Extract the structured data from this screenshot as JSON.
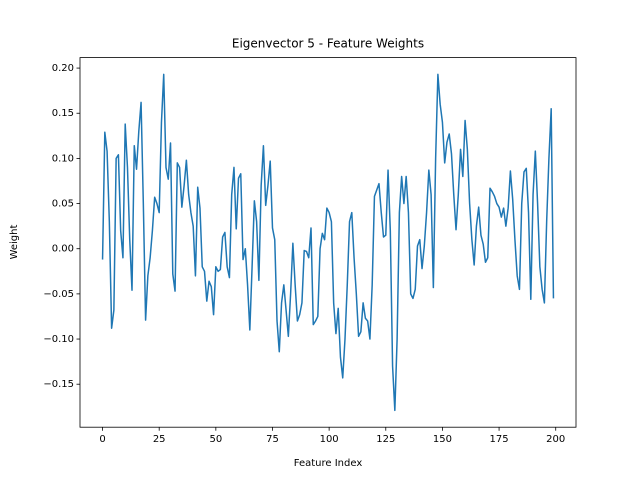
{
  "chart_data": {
    "type": "line",
    "title": "Eigenvector 5 - Feature Weights",
    "xlabel": "Feature Index",
    "ylabel": "Weight",
    "x": [
      0,
      1,
      2,
      3,
      4,
      5,
      6,
      7,
      8,
      9,
      10,
      11,
      12,
      13,
      14,
      15,
      16,
      17,
      18,
      19,
      20,
      21,
      22,
      23,
      24,
      25,
      26,
      27,
      28,
      29,
      30,
      31,
      32,
      33,
      34,
      35,
      36,
      37,
      38,
      39,
      40,
      41,
      42,
      43,
      44,
      45,
      46,
      47,
      48,
      49,
      50,
      51,
      52,
      53,
      54,
      55,
      56,
      57,
      58,
      59,
      60,
      61,
      62,
      63,
      64,
      65,
      66,
      67,
      68,
      69,
      70,
      71,
      72,
      73,
      74,
      75,
      76,
      77,
      78,
      79,
      80,
      81,
      82,
      83,
      84,
      85,
      86,
      87,
      88,
      89,
      90,
      91,
      92,
      93,
      94,
      95,
      96,
      97,
      98,
      99,
      100,
      101,
      102,
      103,
      104,
      105,
      106,
      107,
      108,
      109,
      110,
      111,
      112,
      113,
      114,
      115,
      116,
      117,
      118,
      119,
      120,
      121,
      122,
      123,
      124,
      125,
      126,
      127,
      128,
      129,
      130,
      131,
      132,
      133,
      134,
      135,
      136,
      137,
      138,
      139,
      140,
      141,
      142,
      143,
      144,
      145,
      146,
      147,
      148,
      149,
      150,
      151,
      152,
      153,
      154,
      155,
      156,
      157,
      158,
      159,
      160,
      161,
      162,
      163,
      164,
      165,
      166,
      167,
      168,
      169,
      170,
      171,
      172,
      173,
      174,
      175,
      176,
      177,
      178,
      179,
      180,
      181,
      182,
      183,
      184,
      185,
      186,
      187,
      188,
      189,
      190,
      191,
      192,
      193,
      194,
      195,
      196,
      197,
      198,
      199
    ],
    "series": [
      {
        "color": "#1f77b4",
        "values": [
          -0.012,
          0.129,
          0.108,
          0.03,
          -0.088,
          -0.068,
          0.1,
          0.104,
          0.02,
          -0.01,
          0.138,
          0.09,
          0.01,
          -0.046,
          0.114,
          0.088,
          0.13,
          0.162,
          0.05,
          -0.079,
          -0.03,
          -0.01,
          0.02,
          0.057,
          0.05,
          0.04,
          0.14,
          0.193,
          0.09,
          0.077,
          0.117,
          -0.028,
          -0.047,
          0.095,
          0.09,
          0.046,
          0.07,
          0.098,
          0.06,
          0.04,
          0.025,
          -0.03,
          0.068,
          0.045,
          -0.02,
          -0.025,
          -0.058,
          -0.036,
          -0.042,
          -0.073,
          -0.02,
          -0.025,
          -0.023,
          0.013,
          0.018,
          -0.02,
          -0.032,
          0.06,
          0.09,
          0.022,
          0.078,
          0.083,
          -0.012,
          0.0,
          -0.04,
          -0.09,
          -0.02,
          0.053,
          0.03,
          -0.035,
          0.07,
          0.114,
          0.048,
          0.07,
          0.097,
          0.023,
          0.01,
          -0.08,
          -0.114,
          -0.06,
          -0.04,
          -0.068,
          -0.097,
          -0.05,
          0.006,
          -0.04,
          -0.08,
          -0.073,
          -0.06,
          -0.002,
          -0.003,
          -0.01,
          0.023,
          -0.084,
          -0.08,
          -0.075,
          0.0,
          0.017,
          0.01,
          0.045,
          0.04,
          0.03,
          -0.06,
          -0.094,
          -0.066,
          -0.12,
          -0.143,
          -0.1,
          -0.04,
          0.03,
          0.04,
          -0.01,
          -0.05,
          -0.097,
          -0.092,
          -0.06,
          -0.077,
          -0.08,
          -0.1,
          -0.04,
          0.058,
          0.065,
          0.072,
          0.04,
          0.013,
          0.015,
          0.087,
          0.02,
          -0.13,
          -0.179,
          -0.1,
          0.04,
          0.08,
          0.05,
          0.08,
          0.04,
          -0.05,
          -0.055,
          -0.045,
          0.003,
          0.01,
          -0.022,
          0.003,
          0.04,
          0.087,
          0.06,
          -0.043,
          0.1,
          0.193,
          0.16,
          0.14,
          0.095,
          0.118,
          0.127,
          0.105,
          0.06,
          0.021,
          0.06,
          0.11,
          0.08,
          0.142,
          0.11,
          0.05,
          0.01,
          -0.018,
          0.025,
          0.046,
          0.015,
          0.005,
          -0.015,
          -0.01,
          0.067,
          0.063,
          0.058,
          0.05,
          0.046,
          0.035,
          0.045,
          0.025,
          0.045,
          0.086,
          0.055,
          0.01,
          -0.03,
          -0.045,
          0.05,
          0.085,
          0.089,
          0.04,
          -0.056,
          0.06,
          0.108,
          0.05,
          -0.02,
          -0.045,
          -0.06,
          0.03,
          0.1,
          0.155,
          -0.055
        ]
      }
    ],
    "xlim": [
      -9.95,
      208.95
    ],
    "xticks": [
      0,
      25,
      50,
      75,
      100,
      125,
      150,
      175,
      200
    ],
    "ylim": [
      -0.1976,
      0.2116
    ],
    "yticks": [
      {
        "value": -0.15,
        "label": "−0.15"
      },
      {
        "value": -0.1,
        "label": "−0.10"
      },
      {
        "value": -0.05,
        "label": "−0.05"
      },
      {
        "value": 0,
        "label": "0.00"
      },
      {
        "value": 0.05,
        "label": "0.05"
      },
      {
        "value": 0.1,
        "label": "0.10"
      },
      {
        "value": 0.15,
        "label": "0.15"
      },
      {
        "value": 0.2,
        "label": "0.20"
      }
    ],
    "grid": false
  }
}
